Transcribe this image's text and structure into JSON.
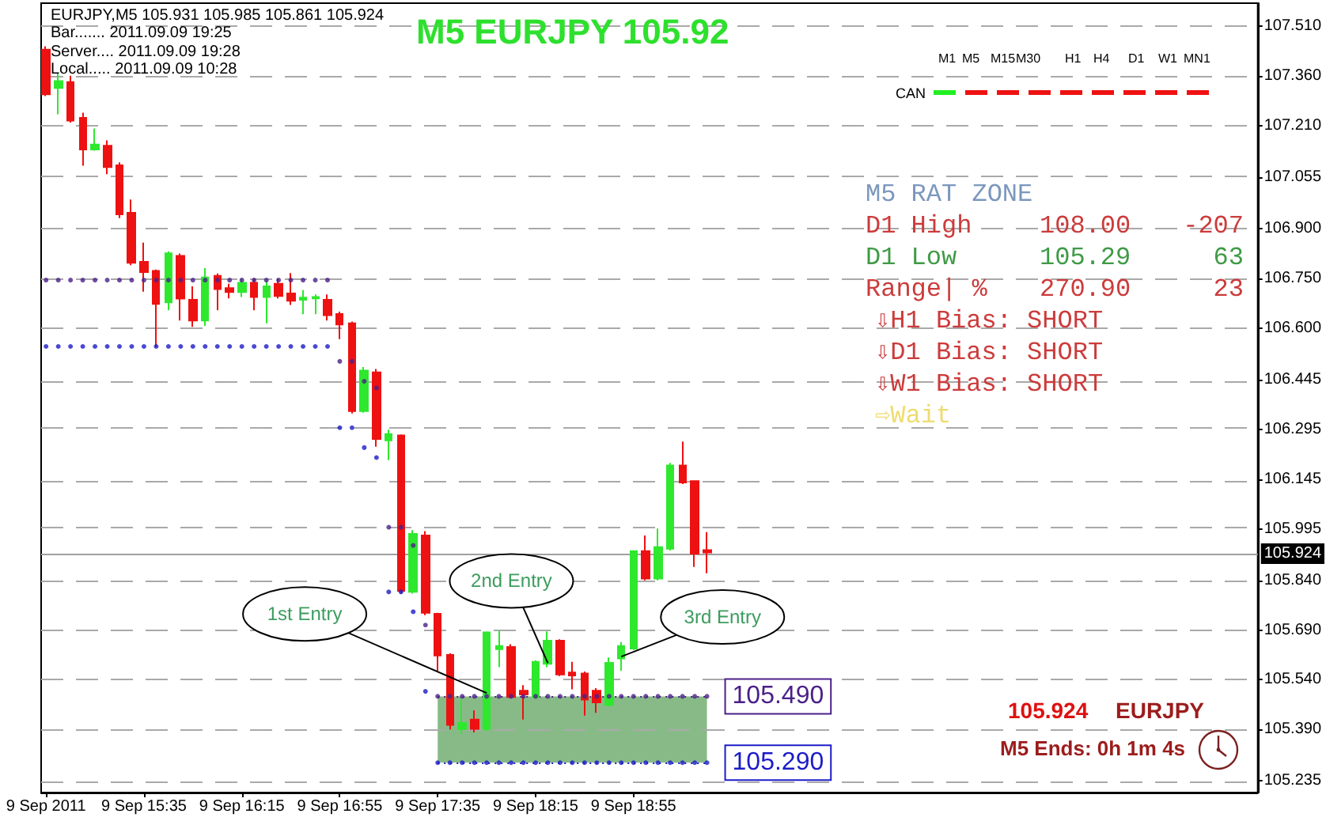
{
  "chart_data": {
    "type": "candlestick",
    "title": "M5 EURJPY 105.92",
    "x": [
      "2011-09-09T14:55",
      "2011-09-09T15:00",
      "2011-09-09T15:05",
      "2011-09-09T15:10",
      "2011-09-09T15:15",
      "2011-09-09T15:20",
      "2011-09-09T15:25",
      "2011-09-09T15:30",
      "2011-09-09T15:35",
      "2011-09-09T15:40",
      "2011-09-09T15:45",
      "2011-09-09T15:50",
      "2011-09-09T15:55",
      "2011-09-09T16:00",
      "2011-09-09T16:05",
      "2011-09-09T16:10",
      "2011-09-09T16:15",
      "2011-09-09T16:20",
      "2011-09-09T16:25",
      "2011-09-09T16:30",
      "2011-09-09T16:35",
      "2011-09-09T16:40",
      "2011-09-09T16:45",
      "2011-09-09T16:50",
      "2011-09-09T16:55",
      "2011-09-09T17:00",
      "2011-09-09T17:05",
      "2011-09-09T17:10",
      "2011-09-09T17:15",
      "2011-09-09T17:20",
      "2011-09-09T17:25",
      "2011-09-09T17:30",
      "2011-09-09T17:35",
      "2011-09-09T17:40",
      "2011-09-09T17:45",
      "2011-09-09T17:50",
      "2011-09-09T17:55",
      "2011-09-09T18:00",
      "2011-09-09T18:05",
      "2011-09-09T18:10",
      "2011-09-09T18:15",
      "2011-09-09T18:20",
      "2011-09-09T18:25",
      "2011-09-09T18:30",
      "2011-09-09T18:35",
      "2011-09-09T18:40",
      "2011-09-09T18:45",
      "2011-09-09T18:50",
      "2011-09-09T18:55",
      "2011-09-09T19:00",
      "2011-09-09T19:05",
      "2011-09-09T19:10",
      "2011-09-09T19:15",
      "2011-09-09T19:20",
      "2011-09-09T19:25"
    ],
    "ohlc": [
      [
        107.44,
        107.45,
        107.3,
        107.305
      ],
      [
        107.324,
        107.369,
        107.245,
        107.345
      ],
      [
        107.342,
        107.361,
        107.22,
        107.226
      ],
      [
        107.234,
        107.25,
        107.09,
        107.139
      ],
      [
        107.139,
        107.202,
        107.135,
        107.154
      ],
      [
        107.15,
        107.166,
        107.064,
        107.086
      ],
      [
        107.091,
        107.1,
        106.932,
        106.943
      ],
      [
        106.948,
        106.988,
        106.79,
        106.797
      ],
      [
        106.8,
        106.858,
        106.71,
        106.769
      ],
      [
        106.773,
        106.777,
        106.543,
        106.673
      ],
      [
        106.678,
        106.832,
        106.654,
        106.826
      ],
      [
        106.818,
        106.825,
        106.623,
        106.689
      ],
      [
        106.686,
        106.726,
        106.604,
        106.623
      ],
      [
        106.623,
        106.781,
        106.607,
        106.753
      ],
      [
        106.758,
        106.765,
        106.654,
        106.718
      ],
      [
        106.721,
        106.734,
        106.69,
        106.709
      ],
      [
        106.709,
        106.75,
        106.694,
        106.737
      ],
      [
        106.737,
        106.75,
        106.654,
        106.694
      ],
      [
        106.694,
        106.743,
        106.615,
        106.726
      ],
      [
        106.734,
        106.75,
        106.69,
        106.697
      ],
      [
        106.705,
        106.766,
        106.67,
        106.683
      ],
      [
        106.686,
        106.715,
        106.642,
        106.692
      ],
      [
        106.69,
        106.702,
        106.642,
        106.694
      ],
      [
        106.686,
        106.702,
        106.623,
        106.639
      ],
      [
        106.643,
        106.65,
        106.567,
        106.611
      ],
      [
        106.615,
        106.62,
        106.343,
        106.35
      ],
      [
        106.35,
        106.483,
        106.345,
        106.472
      ],
      [
        106.467,
        106.477,
        106.243,
        106.266
      ],
      [
        106.262,
        106.294,
        106.202,
        106.281
      ],
      [
        106.277,
        106.28,
        105.8,
        105.808
      ],
      [
        105.805,
        105.991,
        105.8,
        105.98
      ],
      [
        105.975,
        105.988,
        105.735,
        105.742
      ],
      [
        105.739,
        105.742,
        105.567,
        105.613
      ],
      [
        105.615,
        105.62,
        105.39,
        105.404
      ],
      [
        105.391,
        105.481,
        105.377,
        105.41
      ],
      [
        105.42,
        105.448,
        105.381,
        105.392
      ],
      [
        105.392,
        105.686,
        105.386,
        105.683
      ],
      [
        105.632,
        105.689,
        105.578,
        105.642
      ],
      [
        105.639,
        105.647,
        105.485,
        105.488
      ],
      [
        105.507,
        105.524,
        105.42,
        105.496
      ],
      [
        105.488,
        105.599,
        105.485,
        105.594
      ],
      [
        105.588,
        105.686,
        105.578,
        105.658
      ],
      [
        105.658,
        105.662,
        105.551,
        105.556
      ],
      [
        105.562,
        105.594,
        105.511,
        105.553
      ],
      [
        105.559,
        105.565,
        105.432,
        105.48
      ],
      [
        105.507,
        105.515,
        105.44,
        105.472
      ],
      [
        105.464,
        105.607,
        105.46,
        105.591
      ],
      [
        105.604,
        105.654,
        105.567,
        105.642
      ],
      [
        105.634,
        105.93,
        105.63,
        105.928
      ],
      [
        105.928,
        105.975,
        105.84,
        105.845
      ],
      [
        105.845,
        105.996,
        105.84,
        105.94
      ],
      [
        105.935,
        106.194,
        105.93,
        106.186
      ],
      [
        106.186,
        106.258,
        106.13,
        106.135
      ],
      [
        106.139,
        106.14,
        105.88,
        105.92
      ],
      [
        105.931,
        105.985,
        105.861,
        105.924
      ]
    ],
    "colors": [
      "#ee1111",
      "#2ee82e",
      "#ee1111",
      "#ee1111",
      "#2ee82e",
      "#ee1111",
      "#ee1111",
      "#ee1111",
      "#ee1111",
      "#ee1111",
      "#2ee82e",
      "#ee1111",
      "#ee1111",
      "#2ee82e",
      "#ee1111",
      "#ee1111",
      "#2ee82e",
      "#ee1111",
      "#2ee82e",
      "#ee1111",
      "#ee1111",
      "#2ee82e",
      "#2ee82e",
      "#ee1111",
      "#ee1111",
      "#ee1111",
      "#2ee82e",
      "#ee1111",
      "#2ee82e",
      "#ee1111",
      "#2ee82e",
      "#ee1111",
      "#ee1111",
      "#ee1111",
      "#2ee82e",
      "#ee1111",
      "#2ee82e",
      "#2ee82e",
      "#ee1111",
      "#ee1111",
      "#2ee82e",
      "#2ee82e",
      "#ee1111",
      "#ee1111",
      "#ee1111",
      "#ee1111",
      "#2ee82e",
      "#2ee82e",
      "#2ee82e",
      "#ee1111",
      "#2ee82e",
      "#2ee82e",
      "#ee1111",
      "#ee1111",
      "#ee1111"
    ],
    "series": [
      {
        "type": "scatter",
        "color": "#4b2088",
        "values": [
          106.745,
          106.745,
          106.745,
          106.745,
          106.745,
          106.745,
          106.745,
          106.745,
          106.745,
          106.745,
          106.745,
          106.745,
          106.745,
          106.745,
          106.745,
          106.745,
          106.745,
          106.745,
          106.745,
          106.745,
          106.745,
          106.745,
          106.745,
          106.745,
          106.5,
          106.5,
          106.44,
          106.42,
          106.0,
          106.0,
          105.945,
          105.705,
          105.49,
          105.49,
          105.49,
          105.49,
          105.49,
          105.49,
          105.49,
          105.49,
          105.49,
          105.49,
          105.49,
          105.49,
          105.49,
          105.49,
          105.49,
          105.49,
          105.49,
          105.49,
          105.49,
          105.49,
          105.49,
          105.49,
          105.49
        ]
      },
      {
        "type": "scatter",
        "color": "#1c1cc8",
        "values": [
          106.545,
          106.545,
          106.545,
          106.545,
          106.545,
          106.545,
          106.545,
          106.545,
          106.545,
          106.545,
          106.545,
          106.545,
          106.545,
          106.545,
          106.545,
          106.545,
          106.545,
          106.545,
          106.545,
          106.545,
          106.545,
          106.545,
          106.545,
          106.545,
          106.3,
          106.3,
          106.24,
          106.21,
          105.805,
          105.805,
          105.745,
          105.505,
          105.29,
          105.29,
          105.29,
          105.29,
          105.29,
          105.29,
          105.29,
          105.29,
          105.29,
          105.29,
          105.29,
          105.29,
          105.29,
          105.29,
          105.29,
          105.29,
          105.29,
          105.29,
          105.29,
          105.29,
          105.29,
          105.29,
          105.29
        ]
      }
    ],
    "marker": "circle",
    "xlim": [
      "2011-09-09T14:53",
      "2011-09-09T23:10"
    ],
    "xticks": [
      {
        "value": "2011-09-09T14:55",
        "label": "9 Sep 2011"
      },
      {
        "value": "2011-09-09T15:35",
        "label": "9 Sep 15:35"
      },
      {
        "value": "2011-09-09T16:15",
        "label": "9 Sep 16:15"
      },
      {
        "value": "2011-09-09T16:55",
        "label": "9 Sep 16:55"
      },
      {
        "value": "2011-09-09T17:35",
        "label": "9 Sep 17:35"
      },
      {
        "value": "2011-09-09T18:15",
        "label": "9 Sep 18:15"
      },
      {
        "value": "2011-09-09T18:55",
        "label": "9 Sep 18:55"
      }
    ],
    "ylim": [
      105.2,
      107.58
    ],
    "yticks": [
      {
        "value": 107.51,
        "label": "107.510"
      },
      {
        "value": 107.36,
        "label": "107.360"
      },
      {
        "value": 107.21,
        "label": "107.210"
      },
      107.055,
      {
        "value": 106.9,
        "label": "106.900"
      },
      {
        "value": 106.75,
        "label": "106.750"
      },
      {
        "value": 106.6,
        "label": "106.600"
      },
      106.445,
      106.295,
      106.145,
      105.995,
      {
        "value": 105.84,
        "label": "105.840"
      },
      {
        "value": 105.69,
        "label": "105.690"
      },
      {
        "value": 105.54,
        "label": "105.540"
      },
      {
        "value": 105.39,
        "label": "105.390"
      },
      105.235
    ],
    "grid": "y",
    "ref_lines": [
      {
        "axis": "y",
        "value": 105.924,
        "label": "105.924",
        "color": "#a0a0a0",
        "line_style": "solid"
      },
      {
        "axis": "y",
        "value": 105.49,
        "label": "105.490",
        "color": "#4b2088",
        "line_style": "dotted"
      },
      {
        "axis": "y",
        "value": 105.29,
        "label": "105.290",
        "color": "#1c1cc8",
        "line_style": "dotted"
      }
    ],
    "bands": [
      {
        "axis": "y",
        "from": 105.29,
        "to": 105.49,
        "color": "#88ba88"
      }
    ],
    "annotations": [
      "EURJPY,M5 105.931 105.985 105.861 105.924",
      "Bar....... 2011.09.09 19:25",
      "Server.... 2011.09.09 19:28",
      "Local..... 2011.09.09 10:28",
      "M1",
      "M5",
      "M15",
      "M30",
      "H1",
      "H4",
      "D1",
      "W1",
      "MN1",
      "CAN",
      "M5 RAT ZONE",
      "D1 High",
      "108.00",
      "-207",
      "D1 Low",
      "105.29",
      "63",
      "Range| %",
      "270.90",
      "23",
      "⇩H1 Bias: SHORT",
      "⇩D1 Bias: SHORT",
      "⇩W1 Bias: SHORT",
      "⇨Wait",
      {
        "text": "1st Entry",
        "x": "2011-09-09T17:55",
        "y": 105.5
      },
      {
        "text": "2nd Entry",
        "x": "2011-09-09T18:20",
        "y": 105.59
      },
      {
        "text": "3rd Entry",
        "x": "2011-09-09T18:50",
        "y": 105.61
      },
      "105.924",
      "EURJPY",
      "M5 Ends: 0h 1m 4s"
    ]
  }
}
